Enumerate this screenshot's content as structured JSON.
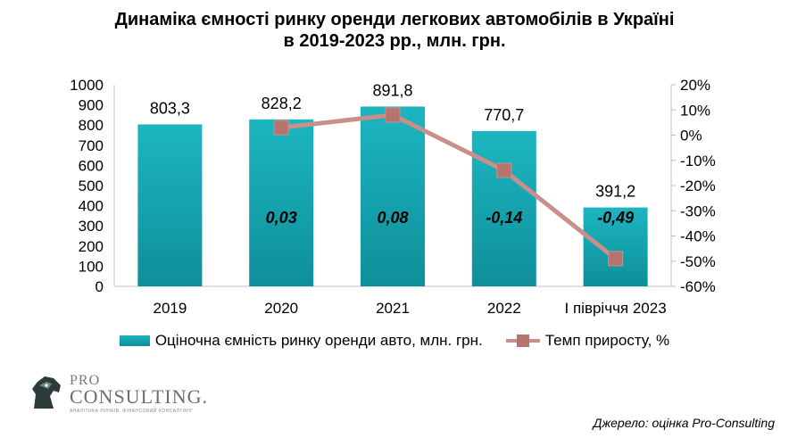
{
  "title_line1": "Динаміка ємності ринку оренди легкових автомобілів в Україні",
  "title_line2": "в 2019-2023 рр., млн. грн.",
  "logo": {
    "top": "PRO",
    "main": "CONSULTING.",
    "sub": "АНАЛІТИКА РИНКІВ. ФІНАНСОВИЙ КОНСАЛТИНГ"
  },
  "source": "Джерело: оцінка Pro-Consulting",
  "colors": {
    "bar": "#13a2ad",
    "line": "#c98f8a",
    "marker": "#b7736d"
  },
  "chart_data": {
    "type": "bar",
    "categories": [
      "2019",
      "2020",
      "2021",
      "2022",
      "І півріччя 2023"
    ],
    "series": [
      {
        "name": "Оціночна ємність ринку оренди авто, млн. грн.",
        "type": "bar",
        "axis": "left",
        "values": [
          803.3,
          828.2,
          891.8,
          770.7,
          391.2
        ],
        "labels": [
          "803,3",
          "828,2",
          "891,8",
          "770,7",
          "391,2"
        ]
      },
      {
        "name": "Темп приросту, %",
        "type": "line",
        "axis": "right",
        "values": [
          null,
          0.03,
          0.08,
          -0.14,
          -0.49
        ],
        "labels": [
          "",
          "0,03",
          "0,08",
          "-0,14",
          "-0,49"
        ]
      }
    ],
    "y_left": {
      "min": 0,
      "max": 1000,
      "ticks": [
        "0",
        "100",
        "200",
        "300",
        "400",
        "500",
        "600",
        "700",
        "800",
        "900",
        "1000"
      ]
    },
    "y_right": {
      "min": -0.6,
      "max": 0.2,
      "ticks": [
        "-60%",
        "-50%",
        "-40%",
        "-30%",
        "-20%",
        "-10%",
        "0%",
        "10%",
        "20%"
      ]
    },
    "grid": false,
    "legend_position": "bottom"
  }
}
